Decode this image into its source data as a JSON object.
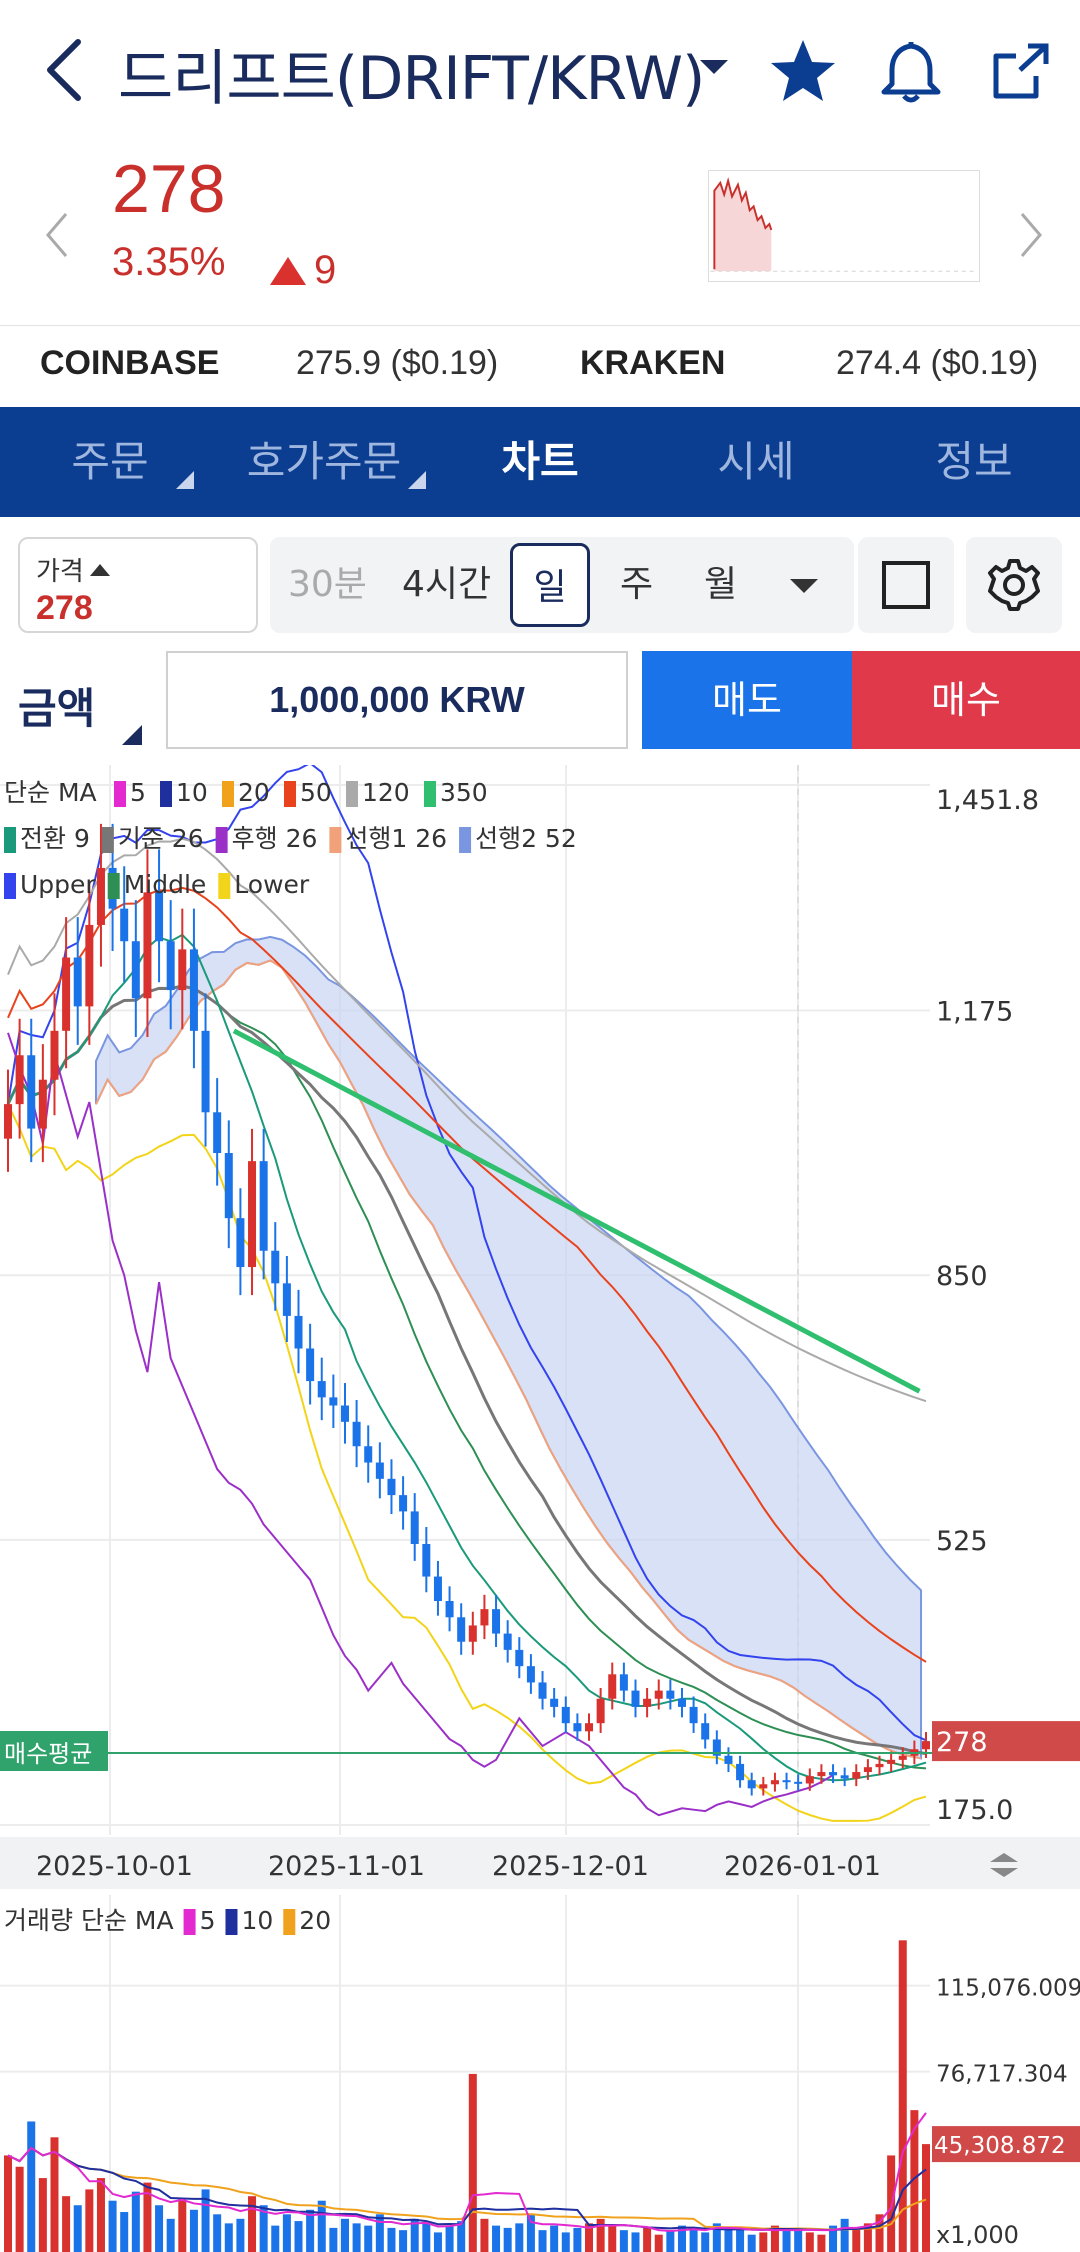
{
  "header": {
    "title": "드리프트(DRIFT/KRW)"
  },
  "ticker": {
    "price": "278",
    "change_pct": "3.35%",
    "change_abs": "9"
  },
  "exchanges": [
    {
      "name": "COINBASE",
      "value": "275.9 ($0.19)"
    },
    {
      "name": "KRAKEN",
      "value": "274.4 ($0.19)"
    }
  ],
  "tabs": [
    "주문",
    "호가주문",
    "차트",
    "시세",
    "정보"
  ],
  "controls": {
    "price_label": "가격",
    "price_value": "278",
    "periods": [
      "30분",
      "4시간",
      "일",
      "주",
      "월"
    ],
    "selected_period": "일"
  },
  "order": {
    "amount_label": "금액",
    "amount_value": "1,000,000 KRW",
    "sell_label": "매도",
    "buy_label": "매수"
  },
  "colors": {
    "primary": "#0b3d91",
    "up": "#d9312d",
    "down": "#1a73e8",
    "ma350": "#3cbf7a"
  },
  "chart_data": {
    "type": "candlestick",
    "legends": {
      "ma_title": "단순 MA",
      "ma": [
        {
          "name": "5",
          "color": "#e22ad0"
        },
        {
          "name": "10",
          "color": "#1f2f9e"
        },
        {
          "name": "20",
          "color": "#f0a21c"
        },
        {
          "name": "50",
          "color": "#e8431c"
        },
        {
          "name": "120",
          "color": "#aaaaaa"
        },
        {
          "name": "350",
          "color": "#2fbf6f"
        }
      ],
      "ichimoku": [
        {
          "name": "전환 9",
          "color": "#1a9a7a"
        },
        {
          "name": "기준 26",
          "color": "#777777"
        },
        {
          "name": "후행 26",
          "color": "#9b30c8"
        },
        {
          "name": "선행1 26",
          "color": "#f2a27a"
        },
        {
          "name": "선행2 52",
          "color": "#7a96e0"
        }
      ],
      "bollinger": [
        {
          "name": "Upper",
          "color": "#3344ee"
        },
        {
          "name": "Middle",
          "color": "#2e8f55"
        },
        {
          "name": "Lower",
          "color": "#f2d41a"
        }
      ]
    },
    "price_axis": [
      "1,451.8",
      "1,175",
      "850",
      "525",
      "175.0"
    ],
    "current_price_tag": "278",
    "avg_buy_label": "매수평균",
    "x_ticks": [
      "2025-10-01",
      "2025-11-01",
      "2025-12-01",
      "2026-01-01"
    ],
    "ylim": [
      175,
      1451.8
    ],
    "closes": [
      1060,
      1120,
      1030,
      1090,
      1150,
      1240,
      1180,
      1280,
      1350,
      1300,
      1260,
      1190,
      1320,
      1260,
      1200,
      1250,
      1150,
      1050,
      1000,
      920,
      860,
      990,
      880,
      840,
      800,
      760,
      720,
      700,
      690,
      670,
      640,
      620,
      600,
      580,
      560,
      520,
      480,
      450,
      430,
      400,
      420,
      440,
      410,
      390,
      370,
      350,
      330,
      320,
      300,
      290,
      300,
      330,
      360,
      340,
      320,
      330,
      340,
      330,
      320,
      300,
      280,
      260,
      250,
      230,
      220,
      225,
      230,
      228,
      226,
      235,
      240,
      236,
      232,
      240,
      246,
      250,
      255,
      260,
      268,
      278
    ],
    "volume": {
      "title": "거래량 단순 MA",
      "ma": [
        {
          "name": "5",
          "color": "#e22ad0"
        },
        {
          "name": "10",
          "color": "#1f2f9e"
        },
        {
          "name": "20",
          "color": "#f0a21c"
        }
      ],
      "axis": [
        "115,076.009",
        "76,717.304"
      ],
      "current_tag": "45,308.872",
      "bottom_label": "x1,000",
      "values": [
        40,
        35,
        55,
        30,
        48,
        22,
        18,
        25,
        30,
        20,
        15,
        24,
        28,
        18,
        12,
        20,
        16,
        25,
        14,
        10,
        12,
        22,
        18,
        9,
        14,
        11,
        16,
        20,
        8,
        12,
        10,
        9,
        14,
        8,
        7,
        12,
        10,
        6,
        9,
        11,
        76,
        12,
        9,
        8,
        10,
        14,
        7,
        9,
        6,
        8,
        10,
        12,
        9,
        7,
        6,
        8,
        5,
        7,
        9,
        8,
        6,
        10,
        7,
        8,
        5,
        6,
        9,
        7,
        8,
        6,
        5,
        9,
        12,
        8,
        10,
        14,
        40,
        135,
        60,
        45
      ]
    }
  }
}
